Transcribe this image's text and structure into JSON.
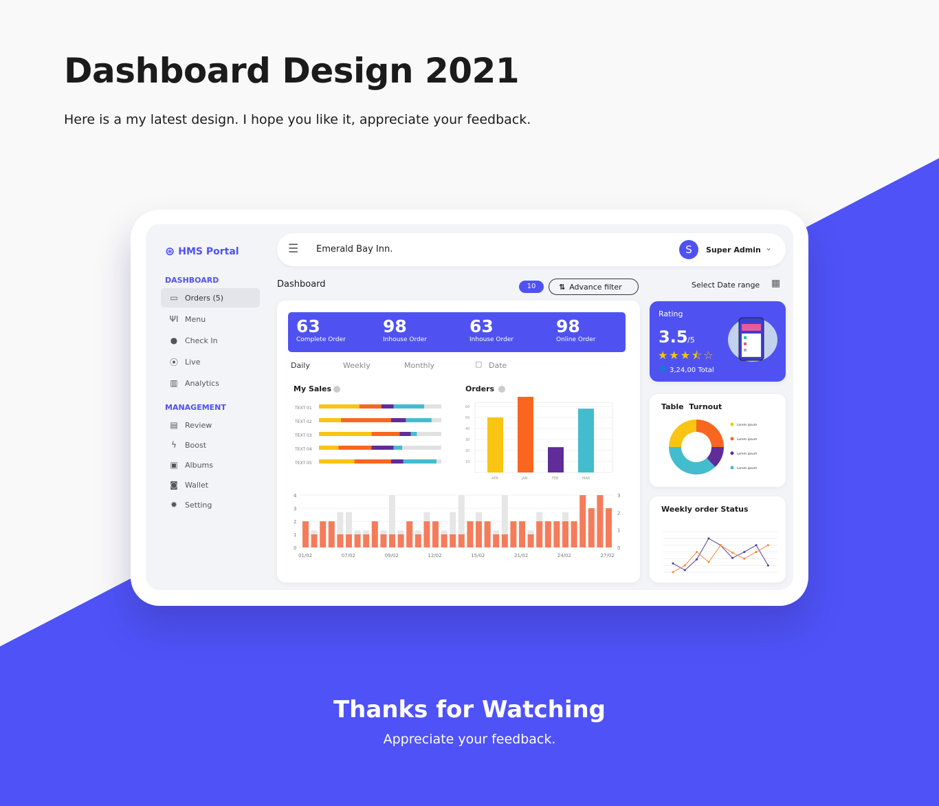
{
  "hero": {
    "title": "Dashboard Design 2021",
    "subtitle": "Here is a my latest design. I hope you like it, appreciate your feedback."
  },
  "footer": {
    "title": "Thanks for Watching",
    "subtitle": "Appreciate your feedback."
  },
  "colors": {
    "accent": "#4f52f0",
    "yellow": "#f9c412",
    "orange": "#f8661f",
    "purple": "#5f2c9a",
    "cyan": "#43bccd",
    "bar": "#f57c5a",
    "bar_bg": "#e6e6e6"
  },
  "sidebar": {
    "logo": "HMS Portal",
    "sections": [
      {
        "label": "DASHBOARD",
        "items": [
          {
            "label": "Orders (5)",
            "icon": "inbox-icon",
            "active": true
          },
          {
            "label": "Menu",
            "icon": "utensils-icon"
          },
          {
            "label": "Check In",
            "icon": "map-pin-icon"
          },
          {
            "label": "Live",
            "icon": "broadcast-icon"
          },
          {
            "label": "Analytics",
            "icon": "bar-chart-icon"
          }
        ]
      },
      {
        "label": "MANAGEMENT",
        "items": [
          {
            "label": "Review",
            "icon": "clipboard-icon"
          },
          {
            "label": "Boost",
            "icon": "bolt-icon"
          },
          {
            "label": "Albums",
            "icon": "images-icon"
          },
          {
            "label": "Wallet",
            "icon": "wallet-icon"
          },
          {
            "label": "Setting",
            "icon": "gear-icon"
          }
        ]
      }
    ]
  },
  "topbar": {
    "hotel": "Emerald Bay Inn.",
    "avatar": "S",
    "user": "Super Admin"
  },
  "toolbar": {
    "title": "Dashboard",
    "badge": "10",
    "filter": "Advance filter",
    "date_range": "Select Date range"
  },
  "stats": [
    {
      "value": "63",
      "label": "Complete Order"
    },
    {
      "value": "98",
      "label": "Inhouse Order"
    },
    {
      "value": "63",
      "label": "Inhouse Order"
    },
    {
      "value": "98",
      "label": "Online Order"
    }
  ],
  "tabs": [
    "Daily",
    "Weekly",
    "Monthly",
    "Date"
  ],
  "rating": {
    "title": "Rating",
    "value": "3.5",
    "suffix": "/5",
    "stars": 3.5,
    "total": "3,24,00 Total"
  },
  "chart_data": [
    {
      "type": "bar",
      "title": "My Sales",
      "orientation": "horizontal",
      "stacked": true,
      "categories": [
        "TEXT 01",
        "TEXT 02",
        "TEXT 03",
        "TEXT 04",
        "TEXT 05"
      ],
      "series": [
        {
          "values": [
            33,
            18,
            43,
            16,
            29
          ]
        },
        {
          "values": [
            18,
            41,
            23,
            27,
            30
          ]
        },
        {
          "values": [
            10,
            12,
            9,
            18,
            10
          ]
        },
        {
          "values": [
            25,
            21,
            5,
            7,
            27
          ]
        }
      ],
      "xlim": [
        0,
        100
      ]
    },
    {
      "type": "bar",
      "title": "Orders",
      "categories": [
        "APR",
        "JAN",
        "FEB",
        "MAR"
      ],
      "values": [
        50,
        70,
        23,
        58
      ],
      "yticks": [
        10,
        20,
        30,
        40,
        50,
        60
      ],
      "ylim": [
        0,
        70
      ],
      "grid": true
    },
    {
      "type": "bar",
      "xticks": [
        "01/02",
        "07/02",
        "09/02",
        "12/02",
        "15/02",
        "21/02",
        "24/02",
        "27/02"
      ],
      "yticks_left": [
        0,
        1,
        2,
        3,
        4
      ],
      "yticks_right": [
        0,
        1,
        2,
        3
      ],
      "ylim": [
        0,
        4
      ],
      "series": [
        {
          "values": [
            2,
            1,
            2,
            2,
            1,
            1,
            1,
            1,
            2,
            1,
            1,
            1,
            2,
            1,
            2,
            2,
            1,
            1,
            1,
            2,
            2,
            2,
            1,
            1,
            2,
            2,
            1,
            2,
            2,
            2,
            2,
            2,
            4,
            3,
            4,
            3
          ]
        },
        {
          "values": [
            2,
            1.3,
            2,
            2,
            2.7,
            2.7,
            1.3,
            1.3,
            2,
            1.3,
            4,
            1.3,
            2,
            1.3,
            2.7,
            2,
            1.3,
            2.7,
            4,
            2,
            2.7,
            2,
            1.3,
            4,
            2,
            2,
            1.3,
            2.7,
            2,
            2,
            2.7,
            2,
            4,
            3,
            4,
            3
          ]
        }
      ]
    },
    {
      "type": "pie",
      "title": "Table  Turnout",
      "donut": true,
      "labels": [
        "Lorem ipsum",
        "Lorem ipsum",
        "Lorem ipsum",
        "Lorem ipsum"
      ],
      "values": [
        25,
        25,
        13,
        37
      ],
      "legend": "right"
    },
    {
      "type": "line",
      "title": "Weekly order Status",
      "x": [
        1,
        2,
        3,
        4,
        5,
        6,
        7,
        8,
        9
      ],
      "ylim": [
        0,
        6
      ],
      "grid": true,
      "series": [
        {
          "values": [
            1.3,
            0.3,
            1.9,
            5,
            4,
            2.1,
            3,
            4,
            1
          ]
        },
        {
          "values": [
            0,
            1,
            3,
            1.5,
            4,
            2.9,
            2,
            3,
            4
          ]
        }
      ]
    }
  ]
}
